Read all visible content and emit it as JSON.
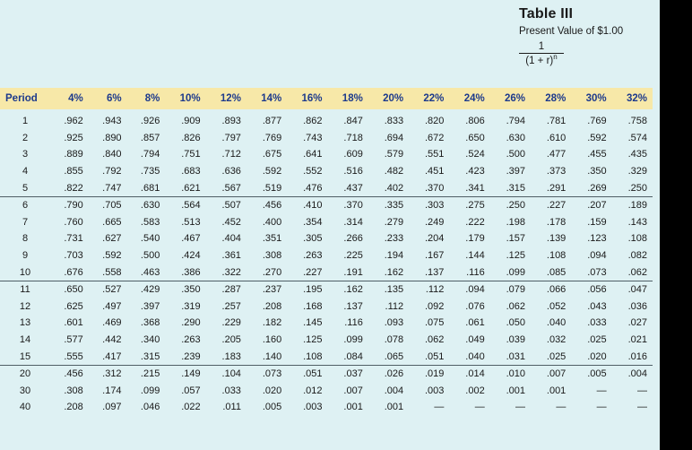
{
  "title": "Table III",
  "subtitle": "Present Value of $1.00",
  "formula": {
    "numerator": "1",
    "denominator": "(1 + r)",
    "exponent": "n"
  },
  "columns": [
    "Period",
    "4%",
    "6%",
    "8%",
    "10%",
    "12%",
    "14%",
    "16%",
    "18%",
    "20%",
    "22%",
    "24%",
    "26%",
    "28%",
    "30%",
    "32%"
  ],
  "rows": [
    [
      "1",
      ".962",
      ".943",
      ".926",
      ".909",
      ".893",
      ".877",
      ".862",
      ".847",
      ".833",
      ".820",
      ".806",
      ".794",
      ".781",
      ".769",
      ".758"
    ],
    [
      "2",
      ".925",
      ".890",
      ".857",
      ".826",
      ".797",
      ".769",
      ".743",
      ".718",
      ".694",
      ".672",
      ".650",
      ".630",
      ".610",
      ".592",
      ".574"
    ],
    [
      "3",
      ".889",
      ".840",
      ".794",
      ".751",
      ".712",
      ".675",
      ".641",
      ".609",
      ".579",
      ".551",
      ".524",
      ".500",
      ".477",
      ".455",
      ".435"
    ],
    [
      "4",
      ".855",
      ".792",
      ".735",
      ".683",
      ".636",
      ".592",
      ".552",
      ".516",
      ".482",
      ".451",
      ".423",
      ".397",
      ".373",
      ".350",
      ".329"
    ],
    [
      "5",
      ".822",
      ".747",
      ".681",
      ".621",
      ".567",
      ".519",
      ".476",
      ".437",
      ".402",
      ".370",
      ".341",
      ".315",
      ".291",
      ".269",
      ".250"
    ],
    [
      "6",
      ".790",
      ".705",
      ".630",
      ".564",
      ".507",
      ".456",
      ".410",
      ".370",
      ".335",
      ".303",
      ".275",
      ".250",
      ".227",
      ".207",
      ".189"
    ],
    [
      "7",
      ".760",
      ".665",
      ".583",
      ".513",
      ".452",
      ".400",
      ".354",
      ".314",
      ".279",
      ".249",
      ".222",
      ".198",
      ".178",
      ".159",
      ".143"
    ],
    [
      "8",
      ".731",
      ".627",
      ".540",
      ".467",
      ".404",
      ".351",
      ".305",
      ".266",
      ".233",
      ".204",
      ".179",
      ".157",
      ".139",
      ".123",
      ".108"
    ],
    [
      "9",
      ".703",
      ".592",
      ".500",
      ".424",
      ".361",
      ".308",
      ".263",
      ".225",
      ".194",
      ".167",
      ".144",
      ".125",
      ".108",
      ".094",
      ".082"
    ],
    [
      "10",
      ".676",
      ".558",
      ".463",
      ".386",
      ".322",
      ".270",
      ".227",
      ".191",
      ".162",
      ".137",
      ".116",
      ".099",
      ".085",
      ".073",
      ".062"
    ],
    [
      "11",
      ".650",
      ".527",
      ".429",
      ".350",
      ".287",
      ".237",
      ".195",
      ".162",
      ".135",
      ".112",
      ".094",
      ".079",
      ".066",
      ".056",
      ".047"
    ],
    [
      "12",
      ".625",
      ".497",
      ".397",
      ".319",
      ".257",
      ".208",
      ".168",
      ".137",
      ".112",
      ".092",
      ".076",
      ".062",
      ".052",
      ".043",
      ".036"
    ],
    [
      "13",
      ".601",
      ".469",
      ".368",
      ".290",
      ".229",
      ".182",
      ".145",
      ".116",
      ".093",
      ".075",
      ".061",
      ".050",
      ".040",
      ".033",
      ".027"
    ],
    [
      "14",
      ".577",
      ".442",
      ".340",
      ".263",
      ".205",
      ".160",
      ".125",
      ".099",
      ".078",
      ".062",
      ".049",
      ".039",
      ".032",
      ".025",
      ".021"
    ],
    [
      "15",
      ".555",
      ".417",
      ".315",
      ".239",
      ".183",
      ".140",
      ".108",
      ".084",
      ".065",
      ".051",
      ".040",
      ".031",
      ".025",
      ".020",
      ".016"
    ],
    [
      "20",
      ".456",
      ".312",
      ".215",
      ".149",
      ".104",
      ".073",
      ".051",
      ".037",
      ".026",
      ".019",
      ".014",
      ".010",
      ".007",
      ".005",
      ".004"
    ],
    [
      "30",
      ".308",
      ".174",
      ".099",
      ".057",
      ".033",
      ".020",
      ".012",
      ".007",
      ".004",
      ".003",
      ".002",
      ".001",
      ".001",
      "—",
      "—"
    ],
    [
      "40",
      ".208",
      ".097",
      ".046",
      ".022",
      ".011",
      ".005",
      ".003",
      ".001",
      ".001",
      "—",
      "—",
      "—",
      "—",
      "—",
      "—"
    ]
  ],
  "colors": {
    "background": "#def1f3",
    "header_band": "#f7e8a8",
    "header_text": "#1d3a8c"
  }
}
